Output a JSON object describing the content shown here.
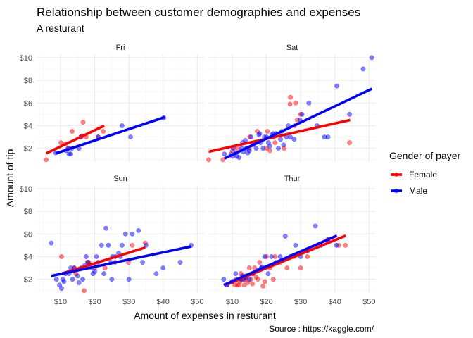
{
  "chart_data": {
    "type": "scatter",
    "title": "Relationship between customer demographies and expenses",
    "subtitle": "A resturant",
    "xlabel": "Amount of expenses in resturant",
    "ylabel": "Amount of tip",
    "caption": "Source : https://kaggle.com/",
    "xlim": [
      3,
      52
    ],
    "ylim": [
      0.8,
      10.3
    ],
    "x_ticks": [
      10,
      20,
      30,
      40,
      50
    ],
    "x_tick_labels": [
      "$10",
      "$20",
      "$30",
      "$40",
      "$50"
    ],
    "y_ticks": [
      2,
      4,
      6,
      8,
      10
    ],
    "y_tick_labels": [
      "$2",
      "$4",
      "$6",
      "$8",
      "$10"
    ],
    "grid": true,
    "legend": {
      "title": "Gender of payer",
      "placement": "right",
      "entries": [
        {
          "name": "Female",
          "color": "#ff0000"
        },
        {
          "name": "Male",
          "color": "#0000ff"
        }
      ]
    },
    "colors": {
      "Female": "#ff0000",
      "Male": "#0000ff"
    },
    "facets": [
      {
        "label": "Fri",
        "points": {
          "Female": [
            [
              5.8,
              1.0
            ],
            [
              10.1,
              2.5
            ],
            [
              12.3,
              2.0
            ],
            [
              13.4,
              3.5
            ],
            [
              15.9,
              3.0
            ],
            [
              16.3,
              3.1
            ],
            [
              16.6,
              4.3
            ],
            [
              17.5,
              3.0
            ],
            [
              22.5,
              3.5
            ],
            [
              21.0,
              3.0
            ],
            [
              11.4,
              2.4
            ]
          ],
          "Male": [
            [
              8.6,
              1.6
            ],
            [
              12.5,
              1.5
            ],
            [
              13.0,
              1.5
            ],
            [
              13.3,
              2.0
            ],
            [
              15.4,
              2.0
            ],
            [
              15.9,
              3.0
            ],
            [
              28.0,
              4.0
            ],
            [
              40.2,
              4.7
            ],
            [
              11.6,
              1.8
            ],
            [
              21.0,
              3.0
            ],
            [
              30.5,
              3.0
            ],
            [
              12.2,
              2.0
            ]
          ]
        },
        "lines": {
          "Female": [
            [
              5.8,
              1.55
            ],
            [
              22.8,
              4.0
            ]
          ],
          "Male": [
            [
              8.6,
              1.55
            ],
            [
              40.5,
              4.75
            ]
          ]
        }
      },
      {
        "label": "Sat",
        "points": {
          "Female": [
            [
              3.1,
              1.0
            ],
            [
              7.3,
              1.0
            ],
            [
              10.1,
              1.8
            ],
            [
              15.0,
              2.0
            ],
            [
              17.3,
              3.5
            ],
            [
              20.0,
              2.0
            ],
            [
              20.3,
              3.5
            ],
            [
              22.5,
              2.5
            ],
            [
              25.2,
              2.0
            ],
            [
              27.0,
              6.5
            ],
            [
              28.2,
              4.0
            ],
            [
              30.0,
              5.0
            ],
            [
              26.9,
              5.9
            ],
            [
              44.3,
              2.5
            ],
            [
              15.1,
              3.0
            ],
            [
              21.0,
              1.8
            ],
            [
              11.5,
              2.0
            ],
            [
              22.0,
              3.0
            ],
            [
              29.0,
              4.5
            ],
            [
              28.5,
              6.0
            ]
          ],
          "Male": [
            [
              7.7,
              1.5
            ],
            [
              9.6,
              1.5
            ],
            [
              10.3,
              2.0
            ],
            [
              11.3,
              1.3
            ],
            [
              12.7,
              2.0
            ],
            [
              13.0,
              2.5
            ],
            [
              13.3,
              1.7
            ],
            [
              14.1,
              2.0
            ],
            [
              14.5,
              1.6
            ],
            [
              15.5,
              3.0
            ],
            [
              16.5,
              2.5
            ],
            [
              17.8,
              3.2
            ],
            [
              18.3,
              2.5
            ],
            [
              19.4,
              3.0
            ],
            [
              20.6,
              2.5
            ],
            [
              21.6,
              3.2
            ],
            [
              22.8,
              3.3
            ],
            [
              24.1,
              2.8
            ],
            [
              25.9,
              3.0
            ],
            [
              26.4,
              4.0
            ],
            [
              28.1,
              2.8
            ],
            [
              30.4,
              5.0
            ],
            [
              32.4,
              6.0
            ],
            [
              34.8,
              4.0
            ],
            [
              37.0,
              3.0
            ],
            [
              38.0,
              3.0
            ],
            [
              40.6,
              7.5
            ],
            [
              44.3,
              5.0
            ],
            [
              48.3,
              9.0
            ],
            [
              50.8,
              10.0
            ],
            [
              10.1,
              1.3
            ],
            [
              12.0,
              1.2
            ],
            [
              16.0,
              2.3
            ],
            [
              18.0,
              3.3
            ],
            [
              19.0,
              2.0
            ],
            [
              23.5,
              2.0
            ],
            [
              27.0,
              3.0
            ],
            [
              15.0,
              1.8
            ],
            [
              21.0,
              2.2
            ],
            [
              11.0,
              1.6
            ],
            [
              29.8,
              4.5
            ],
            [
              25.0,
              2.3
            ],
            [
              13.8,
              2.7
            ],
            [
              17.0,
              2.0
            ],
            [
              22.0,
              3.3
            ],
            [
              24.5,
              3.5
            ],
            [
              20.0,
              3.0
            ]
          ]
        },
        "lines": {
          "Female": [
            [
              3.1,
              1.7
            ],
            [
              44.5,
              4.5
            ]
          ],
          "Male": [
            [
              7.7,
              1.1
            ],
            [
              50.8,
              7.25
            ]
          ]
        }
      },
      {
        "label": "Sun",
        "points": {
          "Female": [
            [
              10.3,
              4.0
            ],
            [
              16.9,
              1.0
            ],
            [
              17.9,
              3.5
            ],
            [
              14.0,
              3.0
            ],
            [
              18.3,
              3.5
            ],
            [
              23.0,
              3.0
            ],
            [
              26.0,
              3.5
            ],
            [
              29.9,
              3.5
            ],
            [
              31.0,
              5.0
            ],
            [
              34.8,
              5.2
            ],
            [
              20.0,
              3.0
            ],
            [
              14.5,
              2.5
            ]
          ],
          "Male": [
            [
              7.3,
              5.2
            ],
            [
              8.8,
              2.0
            ],
            [
              9.7,
              1.5
            ],
            [
              10.3,
              1.2
            ],
            [
              10.7,
              2.0
            ],
            [
              11.0,
              1.8
            ],
            [
              11.5,
              2.5
            ],
            [
              12.5,
              2.5
            ],
            [
              13.5,
              2.0
            ],
            [
              14.0,
              3.0
            ],
            [
              15.0,
              2.3
            ],
            [
              15.4,
              1.7
            ],
            [
              16.0,
              3.0
            ],
            [
              16.5,
              2.0
            ],
            [
              17.0,
              3.2
            ],
            [
              17.5,
              4.0
            ],
            [
              18.0,
              3.5
            ],
            [
              19.0,
              3.0
            ],
            [
              20.0,
              2.7
            ],
            [
              20.5,
              4.0
            ],
            [
              21.0,
              3.5
            ],
            [
              22.0,
              5.0
            ],
            [
              22.7,
              2.5
            ],
            [
              23.3,
              6.5
            ],
            [
              24.0,
              5.0
            ],
            [
              24.7,
              3.5
            ],
            [
              25.2,
              4.0
            ],
            [
              26.0,
              4.0
            ],
            [
              27.0,
              4.3
            ],
            [
              28.0,
              5.0
            ],
            [
              29.0,
              6.0
            ],
            [
              30.0,
              2.0
            ],
            [
              31.0,
              6.0
            ],
            [
              32.8,
              6.3
            ],
            [
              34.0,
              3.5
            ],
            [
              35.0,
              5.0
            ],
            [
              38.0,
              2.5
            ],
            [
              40.0,
              3.0
            ],
            [
              45.0,
              3.5
            ],
            [
              48.2,
              5.0
            ],
            [
              13.0,
              3.0
            ],
            [
              19.5,
              2.5
            ],
            [
              25.0,
              2.0
            ],
            [
              27.5,
              4.0
            ]
          ]
        },
        "lines": {
          "Female": [
            [
              10.3,
              2.5
            ],
            [
              34.8,
              4.8
            ]
          ],
          "Male": [
            [
              7.3,
              2.3
            ],
            [
              48.3,
              4.9
            ]
          ]
        }
      },
      {
        "label": "Thur",
        "points": {
          "Female": [
            [
              8.4,
              1.5
            ],
            [
              10.1,
              1.8
            ],
            [
              10.8,
              1.5
            ],
            [
              11.0,
              2.0
            ],
            [
              11.5,
              1.5
            ],
            [
              12.0,
              1.5
            ],
            [
              12.3,
              1.8
            ],
            [
              12.5,
              2.5
            ],
            [
              13.0,
              2.0
            ],
            [
              13.5,
              1.5
            ],
            [
              14.0,
              2.0
            ],
            [
              14.5,
              1.7
            ],
            [
              15.0,
              3.0
            ],
            [
              15.5,
              2.0
            ],
            [
              16.0,
              2.5
            ],
            [
              16.5,
              3.0
            ],
            [
              17.0,
              2.2
            ],
            [
              17.5,
              2.0
            ],
            [
              18.0,
              3.5
            ],
            [
              19.0,
              1.4
            ],
            [
              19.5,
              1.8
            ],
            [
              20.0,
              4.0
            ],
            [
              21.0,
              3.0
            ],
            [
              22.0,
              2.0
            ],
            [
              24.0,
              3.5
            ],
            [
              26.0,
              3.0
            ],
            [
              28.0,
              4.0
            ],
            [
              30.0,
              3.0
            ],
            [
              32.0,
              4.0
            ],
            [
              35.0,
              5.0
            ],
            [
              38.0,
              5.5
            ],
            [
              41.2,
              5.0
            ],
            [
              43.1,
              5.0
            ],
            [
              15.9,
              1.6
            ],
            [
              22.5,
              4.0
            ],
            [
              13.8,
              2.3
            ]
          ],
          "Male": [
            [
              7.5,
              2.0
            ],
            [
              8.5,
              1.5
            ],
            [
              10.0,
              1.8
            ],
            [
              11.0,
              2.5
            ],
            [
              12.5,
              2.0
            ],
            [
              13.0,
              2.3
            ],
            [
              14.0,
              2.2
            ],
            [
              15.0,
              2.0
            ],
            [
              16.0,
              2.5
            ],
            [
              17.5,
              2.8
            ],
            [
              18.5,
              3.0
            ],
            [
              19.5,
              4.0
            ],
            [
              20.5,
              2.5
            ],
            [
              21.5,
              4.0
            ],
            [
              22.8,
              3.5
            ],
            [
              24.0,
              4.0
            ],
            [
              25.5,
              5.8
            ],
            [
              27.0,
              4.0
            ],
            [
              28.5,
              5.0
            ],
            [
              30.0,
              4.0
            ],
            [
              32.0,
              4.5
            ],
            [
              34.3,
              6.7
            ],
            [
              36.0,
              5.0
            ],
            [
              38.0,
              5.5
            ],
            [
              40.5,
              5.0
            ],
            [
              13.4,
              2.0
            ],
            [
              18.7,
              3.1
            ]
          ]
        },
        "lines": {
          "Female": [
            [
              8.4,
              1.55
            ],
            [
              43.2,
              5.85
            ]
          ],
          "Male": [
            [
              7.5,
              1.5
            ],
            [
              40.6,
              5.85
            ]
          ]
        }
      }
    ]
  }
}
